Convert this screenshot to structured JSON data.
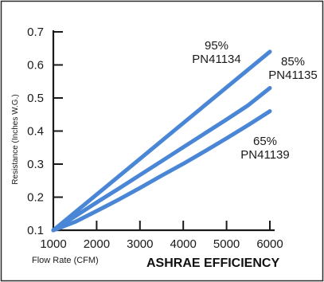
{
  "chart_data": {
    "type": "line",
    "title": "ASHRAE EFFICIENCY",
    "xlabel": "Flow Rate (CFM)",
    "ylabel": "Resistance (Inches W.G.)",
    "xlim": [
      1000,
      6000
    ],
    "ylim": [
      0.1,
      0.7
    ],
    "x_ticks": [
      1000,
      2000,
      3000,
      4000,
      5000,
      6000
    ],
    "y_ticks": [
      0.1,
      0.2,
      0.3,
      0.4,
      0.5,
      0.6,
      0.7
    ],
    "x_tick_labels": [
      "1000",
      "2000",
      "3000",
      "4000",
      "5000",
      "6000"
    ],
    "y_tick_labels": [
      "0.1",
      "0.2",
      "0.3",
      "0.4",
      "0.5",
      "0.6",
      "0.7"
    ],
    "grid": false,
    "line_color": "#4a86d6",
    "frame_color": "#1a1a1a",
    "series": [
      {
        "label_lines": [
          "95%",
          "PN41134"
        ],
        "x": [
          1000,
          1500,
          2000,
          2500,
          3000,
          3500,
          4000,
          4500,
          5000,
          5500,
          6000
        ],
        "y": [
          0.1,
          0.154,
          0.208,
          0.262,
          0.316,
          0.37,
          0.424,
          0.478,
          0.532,
          0.586,
          0.64
        ]
      },
      {
        "label_lines": [
          "85%",
          "PN41135"
        ],
        "x": [
          1000,
          1500,
          2000,
          2500,
          3000,
          3500,
          4000,
          4500,
          5000,
          5500,
          6000
        ],
        "y": [
          0.1,
          0.142,
          0.184,
          0.225,
          0.267,
          0.309,
          0.351,
          0.393,
          0.435,
          0.478,
          0.53
        ]
      },
      {
        "label_lines": [
          "65%",
          "PN41139"
        ],
        "x": [
          1000,
          1500,
          2000,
          2500,
          3000,
          3500,
          4000,
          4500,
          5000,
          5500,
          6000
        ],
        "y": [
          0.1,
          0.125,
          0.158,
          0.192,
          0.228,
          0.265,
          0.301,
          0.339,
          0.378,
          0.418,
          0.46
        ]
      }
    ]
  }
}
